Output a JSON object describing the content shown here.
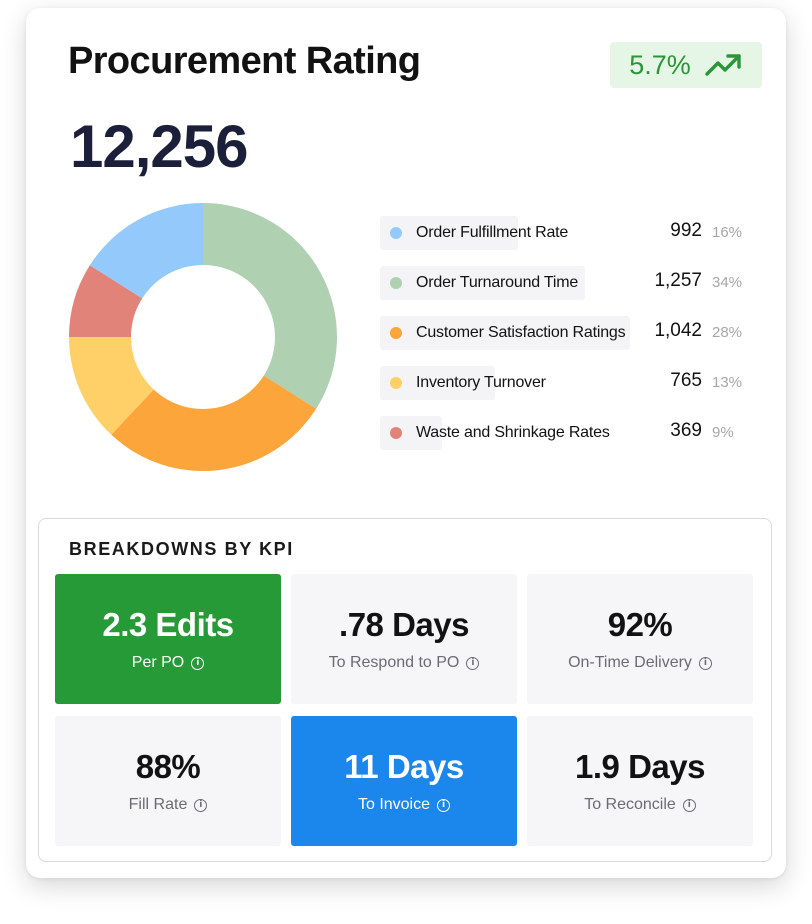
{
  "header": {
    "title": "Procurement Rating",
    "trend_value": "5.7%",
    "trend_icon": "trending-up-icon",
    "total": "12,256"
  },
  "colors": {
    "trend_text": "#2a9638",
    "trend_bg": "#e6f6e6",
    "tile_green": "#279a38",
    "tile_blue": "#1b86ec"
  },
  "legend": [
    {
      "label": "Order Fulfillment Rate",
      "value": "992",
      "pct": "16%",
      "color": "#93c9fb"
    },
    {
      "label": "Order Turnaround Time",
      "value": "1,257",
      "pct": "34%",
      "color": "#b0d0b2"
    },
    {
      "label": "Customer Satisfaction Ratings",
      "value": "1,042",
      "pct": "28%",
      "color": "#fba53b"
    },
    {
      "label": "Inventory Turnover",
      "value": "765",
      "pct": "13%",
      "color": "#fed067"
    },
    {
      "label": "Waste and Shrinkage Rates",
      "value": "369",
      "pct": "9%",
      "color": "#e2837a"
    }
  ],
  "chart_data": {
    "type": "pie",
    "donut": true,
    "title": "",
    "total": 12256,
    "slices": [
      {
        "label": "Order Turnaround Time",
        "value": 1257,
        "percent": 34,
        "color": "#b0d0b2"
      },
      {
        "label": "Customer Satisfaction Ratings",
        "value": 1042,
        "percent": 28,
        "color": "#fba53b"
      },
      {
        "label": "Inventory Turnover",
        "value": 765,
        "percent": 13,
        "color": "#fed067"
      },
      {
        "label": "Waste and Shrinkage Rates",
        "value": 369,
        "percent": 9,
        "color": "#e2837a"
      },
      {
        "label": "Order Fulfillment Rate",
        "value": 992,
        "percent": 16,
        "color": "#93c9fb"
      }
    ]
  },
  "breakdown": {
    "title": "BREAKDOWNS BY KPI",
    "tiles": [
      {
        "value": "2.3 Edits",
        "label": "Per PO",
        "style": "green"
      },
      {
        "value": ".78 Days",
        "label": "To Respond to PO",
        "style": "plain"
      },
      {
        "value": "92%",
        "label": "On-Time Delivery",
        "style": "plain"
      },
      {
        "value": "88%",
        "label": "Fill Rate",
        "style": "plain"
      },
      {
        "value": "11 Days",
        "label": "To Invoice",
        "style": "blue"
      },
      {
        "value": "1.9 Days",
        "label": "To Reconcile",
        "style": "plain"
      }
    ]
  }
}
